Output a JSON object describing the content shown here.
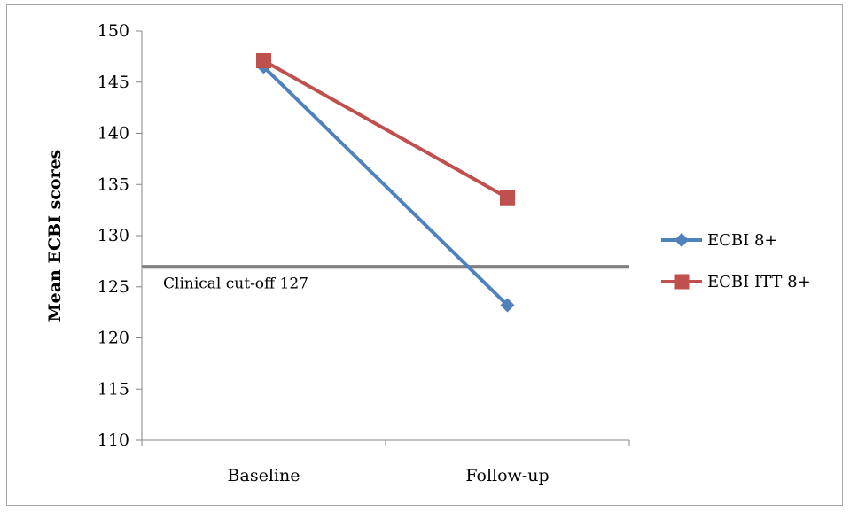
{
  "chart_data": {
    "type": "line",
    "categories": [
      "Baseline",
      "Follow-up"
    ],
    "series": [
      {
        "name": "ECBI 8+",
        "values": [
          146.5,
          123.2
        ],
        "color": "#4f81bd",
        "marker": "diamond"
      },
      {
        "name": "ECBI ITT 8+",
        "values": [
          147.1,
          133.7
        ],
        "color": "#c0504d",
        "marker": "square"
      }
    ],
    "ylabel": "Mean ECBI scores",
    "xlabel": "",
    "ylim": [
      110,
      150
    ],
    "yticks": [
      "110",
      "115",
      "120",
      "125",
      "130",
      "135",
      "140",
      "145",
      "150"
    ],
    "grid": false,
    "legend": "right",
    "reference_line": {
      "value": 127,
      "label": "Clinical cut-off 127",
      "color": "#808080"
    }
  }
}
